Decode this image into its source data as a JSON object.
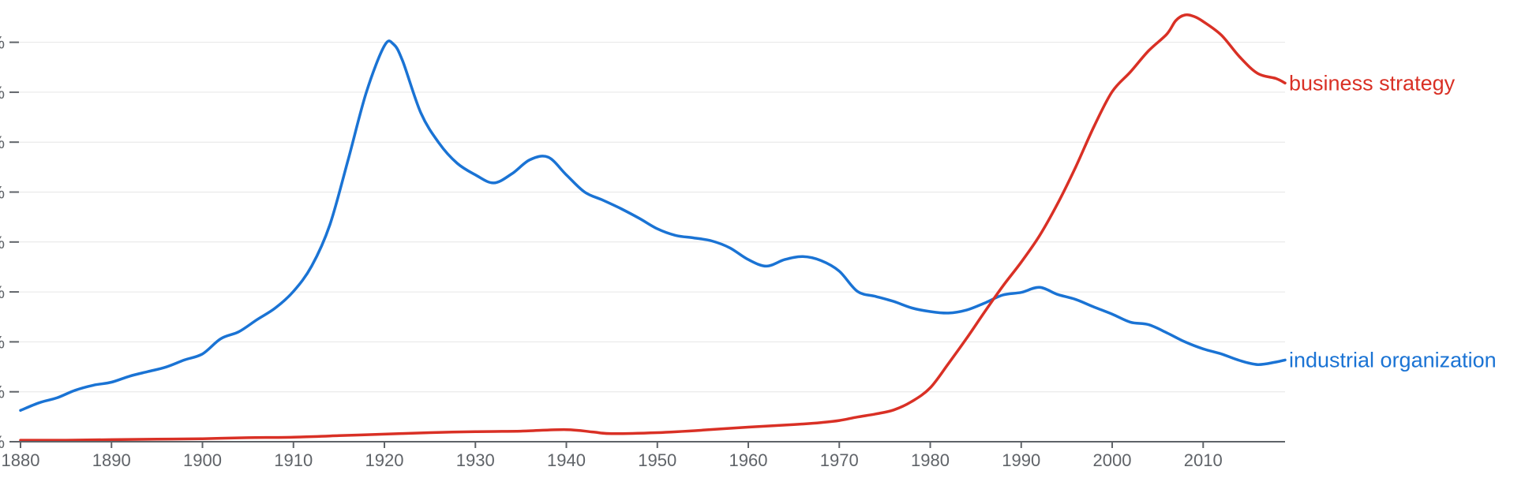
{
  "chart_data": {
    "type": "line",
    "xlim": [
      1880,
      2019
    ],
    "ylim": [
      0,
      8.6
    ],
    "x_ticks": [
      1880,
      1890,
      1900,
      1910,
      1920,
      1930,
      1940,
      1950,
      1960,
      1970,
      1980,
      1990,
      2000,
      2010
    ],
    "y_tick_labels": [
      "%",
      "%",
      "%",
      "%",
      "%",
      "%",
      "%",
      "%",
      "%"
    ],
    "grid": true,
    "series": [
      {
        "name": "industrial organization",
        "color": "#1a73d4",
        "x": [
          1880,
          1882,
          1884,
          1886,
          1888,
          1890,
          1892,
          1894,
          1896,
          1898,
          1900,
          1902,
          1904,
          1906,
          1908,
          1910,
          1912,
          1914,
          1916,
          1918,
          1920,
          1921,
          1922,
          1924,
          1926,
          1928,
          1930,
          1932,
          1934,
          1936,
          1938,
          1940,
          1942,
          1944,
          1946,
          1948,
          1950,
          1952,
          1954,
          1956,
          1958,
          1960,
          1962,
          1964,
          1966,
          1968,
          1970,
          1972,
          1974,
          1976,
          1978,
          1980,
          1982,
          1984,
          1986,
          1988,
          1990,
          1992,
          1994,
          1996,
          1998,
          2000,
          2002,
          2004,
          2006,
          2008,
          2010,
          2012,
          2014,
          2016,
          2018,
          2019
        ],
        "values": [
          0.62,
          0.77,
          0.87,
          1.02,
          1.12,
          1.18,
          1.3,
          1.39,
          1.48,
          1.62,
          1.74,
          2.04,
          2.18,
          2.42,
          2.65,
          2.98,
          3.48,
          4.3,
          5.58,
          6.92,
          7.85,
          7.88,
          7.55,
          6.52,
          5.92,
          5.52,
          5.29,
          5.13,
          5.31,
          5.59,
          5.64,
          5.29,
          4.95,
          4.79,
          4.62,
          4.43,
          4.22,
          4.09,
          4.04,
          3.98,
          3.84,
          3.61,
          3.48,
          3.61,
          3.67,
          3.59,
          3.38,
          2.98,
          2.88,
          2.78,
          2.65,
          2.58,
          2.55,
          2.61,
          2.75,
          2.91,
          2.96,
          3.06,
          2.92,
          2.82,
          2.67,
          2.53,
          2.37,
          2.32,
          2.16,
          1.98,
          1.84,
          1.74,
          1.61,
          1.53,
          1.58,
          1.62
        ]
      },
      {
        "name": "business strategy",
        "color": "#d93025",
        "x": [
          1880,
          1885,
          1890,
          1895,
          1900,
          1905,
          1910,
          1915,
          1920,
          1925,
          1930,
          1935,
          1940,
          1943,
          1945,
          1950,
          1955,
          1960,
          1965,
          1968,
          1970,
          1972,
          1974,
          1976,
          1978,
          1980,
          1982,
          1984,
          1986,
          1988,
          1990,
          1992,
          1994,
          1996,
          1998,
          2000,
          2002,
          2004,
          2006,
          2007,
          2008,
          2009,
          2010,
          2012,
          2014,
          2016,
          2018,
          2019
        ],
        "values": [
          0.03,
          0.03,
          0.04,
          0.05,
          0.06,
          0.08,
          0.09,
          0.12,
          0.15,
          0.18,
          0.2,
          0.21,
          0.24,
          0.19,
          0.16,
          0.18,
          0.23,
          0.29,
          0.34,
          0.38,
          0.42,
          0.49,
          0.55,
          0.63,
          0.8,
          1.07,
          1.55,
          2.05,
          2.58,
          3.09,
          3.56,
          4.08,
          4.72,
          5.45,
          6.25,
          6.94,
          7.33,
          7.75,
          8.08,
          8.35,
          8.46,
          8.43,
          8.33,
          8.06,
          7.63,
          7.3,
          7.2,
          7.11
        ]
      }
    ]
  }
}
